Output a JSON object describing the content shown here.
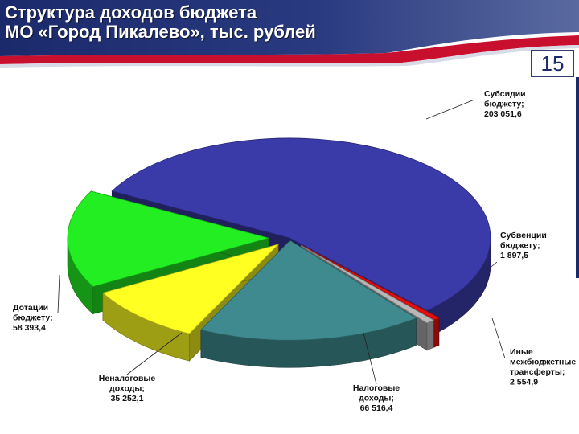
{
  "header": {
    "title_line1": "Структура доходов бюджета",
    "title_line2": "МО «Город Пикалево», тыс. рублей",
    "page_number": "15"
  },
  "colors": {
    "header_dark": "#1b2a6b",
    "header_red": "#c8102e",
    "subsidies": "#3a3aa8",
    "subventions": "#e01010",
    "other_transfers": "#b8b8b8",
    "tax": "#3e8a8e",
    "non_tax": "#ffff22",
    "grants": "#22ee22"
  },
  "chart_data": {
    "type": "pie",
    "title": "Структура доходов бюджета МО «Город Пикалево», тыс. рублей",
    "unit": "тыс. рублей",
    "slices": [
      {
        "name": "Субсидии бюджету",
        "value": 203051.6,
        "label_lines": [
          "Субсидии",
          "бюджету;",
          "203 051,6"
        ]
      },
      {
        "name": "Субвенции бюджету",
        "value": 1897.5,
        "label_lines": [
          "Субвенции",
          "бюджету;",
          "1 897,5"
        ]
      },
      {
        "name": "Иные межбюджетные трансферты",
        "value": 2554.9,
        "label_lines": [
          "Иные",
          "межбюджетные",
          "трансферты;",
          "2 554,9"
        ]
      },
      {
        "name": "Налоговые доходы",
        "value": 66516.4,
        "label_lines": [
          "Налоговые",
          "доходы;",
          "66 516,4"
        ]
      },
      {
        "name": "Неналоговые доходы",
        "value": 35252.1,
        "label_lines": [
          "Неналоговые",
          "доходы;",
          "35 252,1"
        ]
      },
      {
        "name": "Дотации бюджету",
        "value": 58393.4,
        "label_lines": [
          "Дотации",
          "бюджету;",
          "58 393,4"
        ]
      }
    ]
  }
}
